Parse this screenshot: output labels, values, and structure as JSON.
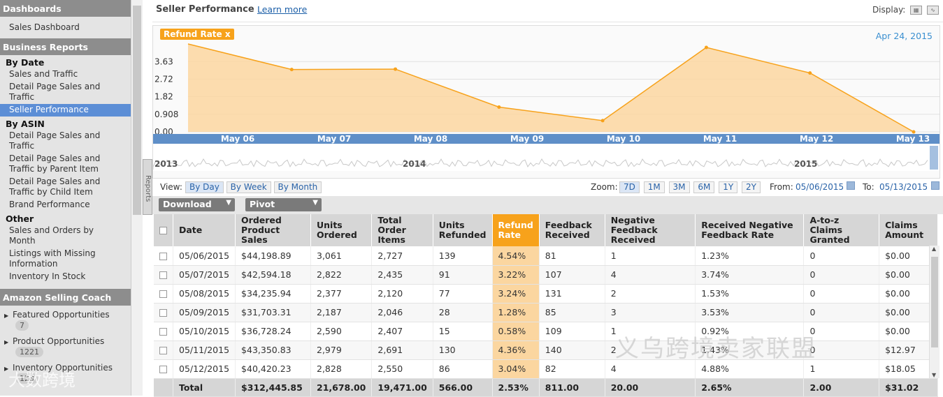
{
  "sidebar": {
    "sections": {
      "dashboards": "Dashboards",
      "business_reports": "Business Reports",
      "coach": "Amazon Selling Coach"
    },
    "dashboard_items": [
      "Sales Dashboard"
    ],
    "by_date_label": "By Date",
    "by_date_items": [
      "Sales and Traffic",
      "Detail Page Sales and Traffic",
      "Seller Performance"
    ],
    "by_asin_label": "By ASIN",
    "by_asin_items": [
      "Detail Page Sales and Traffic",
      "Detail Page Sales and Traffic by Parent Item",
      "Detail Page Sales and Traffic by Child Item",
      "Brand Performance"
    ],
    "other_label": "Other",
    "other_items": [
      "Sales and Orders by Month",
      "Listings with Missing Information",
      "Inventory In Stock"
    ],
    "coach_items": [
      {
        "label": "Featured Opportunities",
        "count": "7"
      },
      {
        "label": "Product Opportunities",
        "count": "1221"
      },
      {
        "label": "Inventory Opportunities",
        "count": "123"
      }
    ],
    "reports_tab": "Reports"
  },
  "header": {
    "title": "Seller Performance",
    "learn_more": "Learn more",
    "display_label": "Display:"
  },
  "chart": {
    "tag": "Refund Rate",
    "tag_close": "x",
    "date": "Apr 24, 2015",
    "nav_years": [
      "2013",
      "2014",
      "2015"
    ]
  },
  "chart_data": {
    "type": "area",
    "title": "",
    "categories": [
      "May 06",
      "May 07",
      "May 08",
      "May 09",
      "May 10",
      "May 11",
      "May 12",
      "May 13"
    ],
    "series": [
      {
        "name": "Refund Rate",
        "values": [
          4.54,
          3.22,
          3.24,
          1.28,
          0.58,
          4.36,
          3.04,
          0.0
        ]
      }
    ],
    "y_ticks": [
      "0.00",
      "0.908",
      "1.82",
      "2.72",
      "3.63"
    ],
    "ylim": [
      0,
      4.54
    ],
    "grid": true,
    "color": "#f7a21b",
    "fill": "#fbd6a0"
  },
  "controls": {
    "view_label": "View:",
    "views": [
      "By Day",
      "By Week",
      "By Month"
    ],
    "zoom_label": "Zoom:",
    "zooms": [
      "7D",
      "1M",
      "3M",
      "6M",
      "1Y",
      "2Y"
    ],
    "from_label": "From:",
    "from_value": "05/06/2015",
    "to_label": "To:",
    "to_value": "05/13/2015",
    "download": "Download",
    "pivot": "Pivot"
  },
  "table": {
    "headers": [
      "Date",
      "Ordered Product Sales",
      "Units Ordered",
      "Total Order Items",
      "Units Refunded",
      "Refund Rate",
      "Feedback Received",
      "Negative Feedback Received",
      "Received Negative Feedback Rate",
      "A-to-z Claims Granted",
      "Claims Amount"
    ],
    "rows": [
      [
        "05/06/2015",
        "$44,198.89",
        "3,061",
        "2,727",
        "139",
        "4.54%",
        "81",
        "1",
        "1.23%",
        "0",
        "$0.00"
      ],
      [
        "05/07/2015",
        "$42,594.18",
        "2,822",
        "2,435",
        "91",
        "3.22%",
        "107",
        "4",
        "3.74%",
        "0",
        "$0.00"
      ],
      [
        "05/08/2015",
        "$34,235.94",
        "2,377",
        "2,120",
        "77",
        "3.24%",
        "131",
        "2",
        "1.53%",
        "0",
        "$0.00"
      ],
      [
        "05/09/2015",
        "$31,703.31",
        "2,187",
        "2,046",
        "28",
        "1.28%",
        "85",
        "3",
        "3.53%",
        "0",
        "$0.00"
      ],
      [
        "05/10/2015",
        "$36,728.24",
        "2,590",
        "2,407",
        "15",
        "0.58%",
        "109",
        "1",
        "0.92%",
        "0",
        "$0.00"
      ],
      [
        "05/11/2015",
        "$43,350.83",
        "2,979",
        "2,691",
        "130",
        "4.36%",
        "140",
        "2",
        "1.43%",
        "0",
        "$12.97"
      ],
      [
        "05/12/2015",
        "$40,420.23",
        "2,828",
        "2,550",
        "86",
        "3.04%",
        "82",
        "4",
        "4.88%",
        "1",
        "$18.05"
      ]
    ],
    "total": [
      "Total",
      "$312,445.85",
      "21,678.00",
      "19,471.00",
      "566.00",
      "2.53%",
      "811.00",
      "20.00",
      "2.65%",
      "2.00",
      "$31.02"
    ]
  },
  "watermarks": [
    "义乌跨境卖家联盟",
    "大数跨境"
  ]
}
